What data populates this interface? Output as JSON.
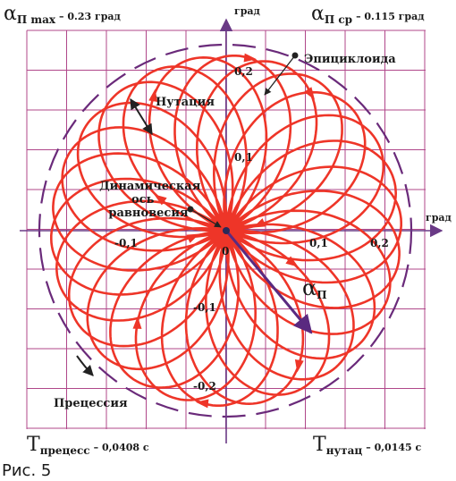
{
  "corners": {
    "top_left": {
      "symbol": "α",
      "sub": "П max",
      "value": "– 0.23 град"
    },
    "top_right": {
      "symbol": "α",
      "sub": "П ср",
      "value": "– 0.115 град"
    },
    "bottom_left": {
      "symbol": "Т",
      "sub": "прецесс",
      "value": "– 0,0408 с"
    },
    "bottom_right": {
      "symbol": "Т",
      "sub": "нутац",
      "value": "– 0,0145 с"
    }
  },
  "axes": {
    "y_unit": "град",
    "x_unit": "град",
    "origin": "0",
    "x_ticks": [
      "-0,1",
      "0,1",
      "0,2"
    ],
    "y_ticks": [
      "0,2",
      "0,1",
      "-0,1",
      "-0,2"
    ]
  },
  "labels": {
    "epicycloid": "Эпициклоида",
    "nutation": "Нутация",
    "dyn_axis_line1": "Динамическая",
    "dyn_axis_line2": "ось",
    "dyn_axis_line3": "равновесия",
    "alpha": {
      "symbol": "α",
      "sub": "П"
    },
    "precession": "Прецессия"
  },
  "caption": "Рис. 5",
  "colors": {
    "grid": "#b0478a",
    "curve": "#ee3528",
    "axis": "#6a3a86",
    "dashed_circle": "#6a2a7a",
    "vector": "#5a2a80",
    "text": "#1a1a1a"
  }
}
